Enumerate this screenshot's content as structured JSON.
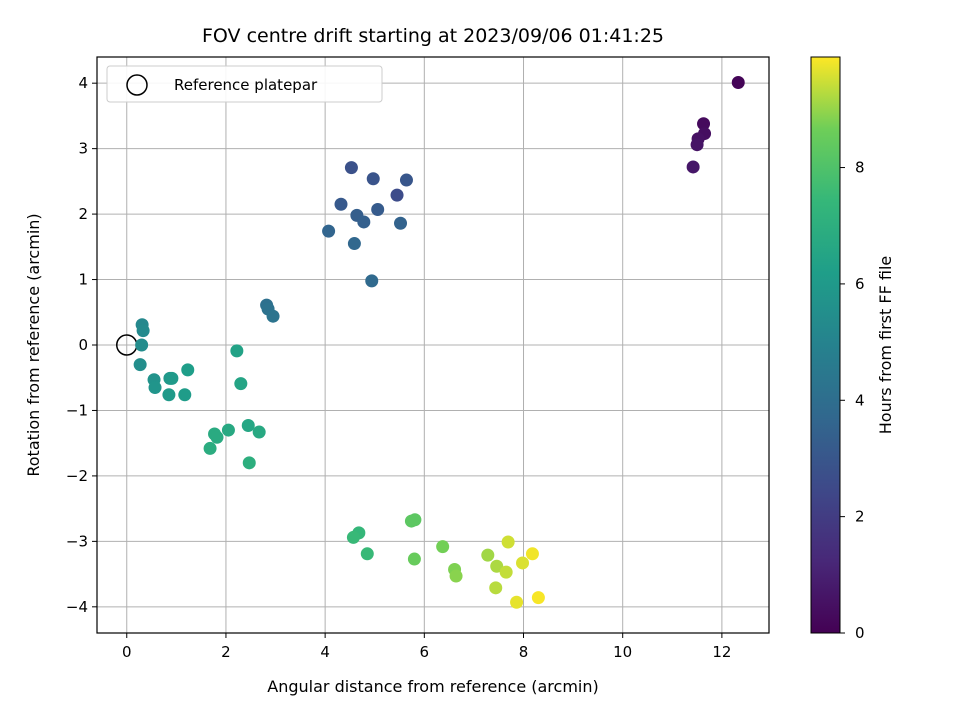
{
  "chart_data": {
    "type": "scatter",
    "title": "FOV centre drift starting at 2023/09/06 01:41:25",
    "xlabel": "Angular distance from reference (arcmin)",
    "ylabel": "Rotation from reference (arcmin)",
    "xlim": [
      -0.6,
      12.95
    ],
    "ylim": [
      -4.4,
      4.4
    ],
    "xticks": [
      0,
      2,
      4,
      6,
      8,
      10,
      12
    ],
    "yticks": [
      -4,
      -3,
      -2,
      -1,
      0,
      1,
      2,
      3,
      4
    ],
    "grid": true,
    "legend": {
      "placement": "top-left",
      "entries": [
        "Reference platepar"
      ]
    },
    "reference_point": {
      "x": 0,
      "y": 0
    },
    "colorbar": {
      "label": "Hours from first FF file",
      "range": [
        0,
        9.9
      ],
      "ticks": [
        0,
        2,
        4,
        6,
        8
      ],
      "colormap": "viridis"
    },
    "points": [
      {
        "x": 12.33,
        "y": 4.01,
        "h": 0.1
      },
      {
        "x": 11.63,
        "y": 3.38,
        "h": 0.3
      },
      {
        "x": 11.65,
        "y": 3.23,
        "h": 0.4
      },
      {
        "x": 11.52,
        "y": 3.15,
        "h": 0.5
      },
      {
        "x": 11.5,
        "y": 3.06,
        "h": 0.6
      },
      {
        "x": 11.42,
        "y": 2.72,
        "h": 0.7
      },
      {
        "x": 5.45,
        "y": 2.29,
        "h": 2.6
      },
      {
        "x": 4.53,
        "y": 2.71,
        "h": 2.8
      },
      {
        "x": 4.97,
        "y": 2.54,
        "h": 2.9
      },
      {
        "x": 5.64,
        "y": 2.52,
        "h": 3.0
      },
      {
        "x": 4.32,
        "y": 2.15,
        "h": 3.1
      },
      {
        "x": 5.06,
        "y": 2.07,
        "h": 3.2
      },
      {
        "x": 4.64,
        "y": 1.98,
        "h": 3.3
      },
      {
        "x": 4.78,
        "y": 1.88,
        "h": 3.4
      },
      {
        "x": 5.52,
        "y": 1.86,
        "h": 3.5
      },
      {
        "x": 4.07,
        "y": 1.74,
        "h": 3.6
      },
      {
        "x": 4.59,
        "y": 1.55,
        "h": 3.7
      },
      {
        "x": 4.94,
        "y": 0.98,
        "h": 3.8
      },
      {
        "x": 2.82,
        "y": 0.61,
        "h": 4.1
      },
      {
        "x": 2.85,
        "y": 0.55,
        "h": 4.2
      },
      {
        "x": 2.95,
        "y": 0.44,
        "h": 4.3
      },
      {
        "x": 0.31,
        "y": 0.31,
        "h": 5.2
      },
      {
        "x": 0.33,
        "y": 0.22,
        "h": 5.3
      },
      {
        "x": 0.3,
        "y": 0.0,
        "h": 5.4
      },
      {
        "x": 0.27,
        "y": -0.3,
        "h": 5.5
      },
      {
        "x": 0.55,
        "y": -0.53,
        "h": 5.7
      },
      {
        "x": 0.57,
        "y": -0.65,
        "h": 5.8
      },
      {
        "x": 0.87,
        "y": -0.51,
        "h": 5.9
      },
      {
        "x": 0.91,
        "y": -0.51,
        "h": 6.0
      },
      {
        "x": 0.85,
        "y": -0.76,
        "h": 6.0
      },
      {
        "x": 1.17,
        "y": -0.76,
        "h": 6.1
      },
      {
        "x": 1.23,
        "y": -0.38,
        "h": 6.2
      },
      {
        "x": 2.22,
        "y": -0.09,
        "h": 6.4
      },
      {
        "x": 2.3,
        "y": -0.59,
        "h": 6.5
      },
      {
        "x": 2.45,
        "y": -1.23,
        "h": 6.6
      },
      {
        "x": 2.05,
        "y": -1.3,
        "h": 6.7
      },
      {
        "x": 2.67,
        "y": -1.33,
        "h": 6.7
      },
      {
        "x": 1.77,
        "y": -1.36,
        "h": 6.8
      },
      {
        "x": 1.82,
        "y": -1.41,
        "h": 6.8
      },
      {
        "x": 1.68,
        "y": -1.58,
        "h": 6.9
      },
      {
        "x": 2.47,
        "y": -1.8,
        "h": 7.0
      },
      {
        "x": 4.68,
        "y": -2.87,
        "h": 7.4
      },
      {
        "x": 4.57,
        "y": -2.94,
        "h": 7.5
      },
      {
        "x": 4.85,
        "y": -3.19,
        "h": 7.5
      },
      {
        "x": 5.74,
        "y": -2.69,
        "h": 8.3
      },
      {
        "x": 5.81,
        "y": -2.67,
        "h": 8.3
      },
      {
        "x": 5.8,
        "y": -3.27,
        "h": 8.5
      },
      {
        "x": 6.37,
        "y": -3.08,
        "h": 8.7
      },
      {
        "x": 6.61,
        "y": -3.43,
        "h": 8.8
      },
      {
        "x": 6.64,
        "y": -3.53,
        "h": 8.9
      },
      {
        "x": 7.28,
        "y": -3.21,
        "h": 9.1
      },
      {
        "x": 7.46,
        "y": -3.38,
        "h": 9.2
      },
      {
        "x": 7.44,
        "y": -3.71,
        "h": 9.3
      },
      {
        "x": 7.65,
        "y": -3.47,
        "h": 9.4
      },
      {
        "x": 7.69,
        "y": -3.01,
        "h": 9.5
      },
      {
        "x": 7.98,
        "y": -3.33,
        "h": 9.6
      },
      {
        "x": 7.86,
        "y": -3.93,
        "h": 9.7
      },
      {
        "x": 8.18,
        "y": -3.19,
        "h": 9.8
      },
      {
        "x": 8.3,
        "y": -3.86,
        "h": 9.85
      }
    ]
  }
}
